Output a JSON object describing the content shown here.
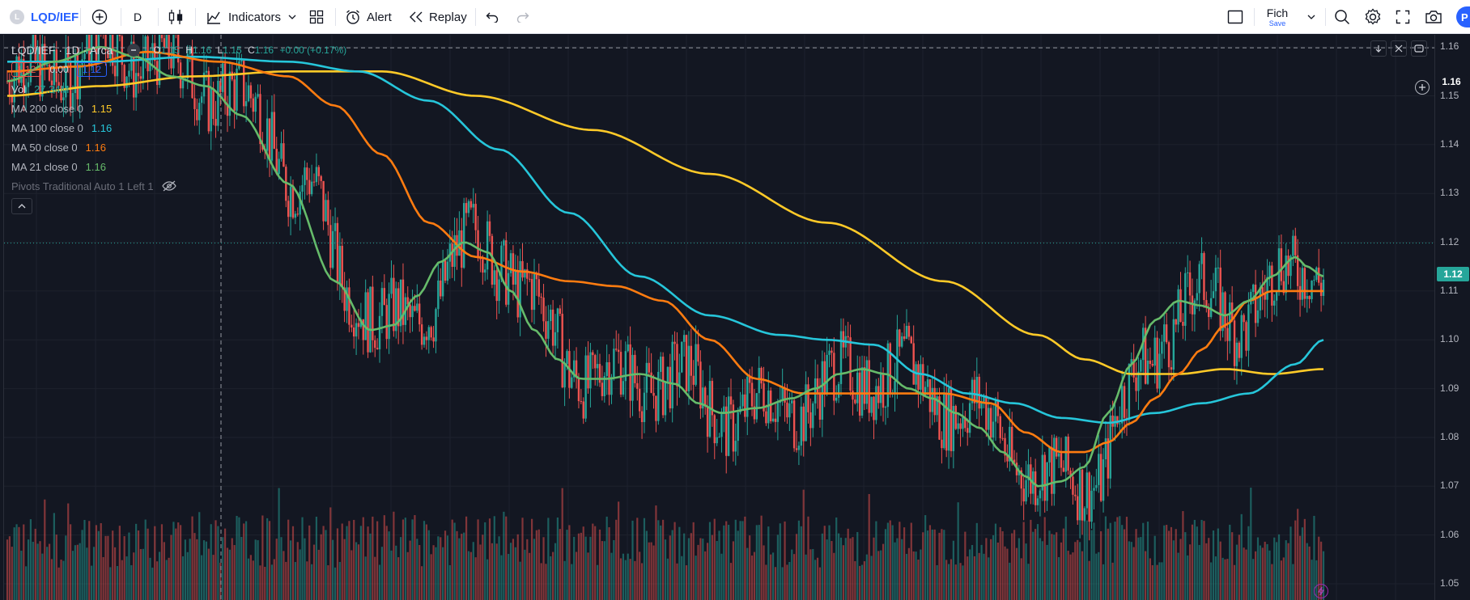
{
  "toolbar": {
    "symbol": "LQD/IEF",
    "interval": "D",
    "indicators_label": "Indicators",
    "alert_label": "Alert",
    "replay_label": "Replay",
    "layout_name": "Fich",
    "layout_save": "Save",
    "profile_initial": "P"
  },
  "legend": {
    "title": "LQD/IEF · 1D · Arca",
    "o_label": "O",
    "o_val": "1.15",
    "h_label": "H",
    "h_val": "1.16",
    "l_label": "L",
    "l_val": "1.15",
    "c_label": "C",
    "c_val": "1.16",
    "change": "+0.00 (+0.17%)",
    "sell_price": "1.12",
    "spread": "0.00",
    "buy_price": "1.12",
    "vol_label": "Vol",
    "vol_value": "27.34M",
    "indicators": [
      {
        "name": "MA 200 close 0",
        "value": "1.15",
        "color": "#ffca28"
      },
      {
        "name": "MA 100 close 0",
        "value": "1.16",
        "color": "#26c6da"
      },
      {
        "name": "MA 50 close 0",
        "value": "1.16",
        "color": "#ff7c10"
      },
      {
        "name": "MA 21 close 0",
        "value": "1.16",
        "color": "#66bb6a"
      }
    ],
    "pivots": "Pivots Traditional Auto 1 Left 1"
  },
  "price_axis": {
    "ticks": [
      "1.16",
      "1.15",
      "1.14",
      "1.13",
      "1.12",
      "1.11",
      "1.10",
      "1.09",
      "1.08",
      "1.07",
      "1.06",
      "1.05"
    ],
    "crosshair_price": "1.16",
    "last_price": "1.12"
  },
  "chart_data": {
    "type": "candlestick",
    "symbol": "LQD/IEF",
    "interval": "1D",
    "ylim": [
      1.05,
      1.165
    ],
    "ma_colors": {
      "ma21": "#66bb6a",
      "ma50": "#ff7c10",
      "ma100": "#26c6da",
      "ma200": "#ffca28"
    },
    "up_color": "#26a69a",
    "down_color": "#ef5350",
    "ma21_keypoints": [
      [
        0,
        1.153
      ],
      [
        20,
        1.157
      ],
      [
        40,
        1.16
      ],
      [
        55,
        1.158
      ],
      [
        70,
        1.154
      ],
      [
        85,
        1.152
      ],
      [
        100,
        1.146
      ],
      [
        120,
        1.132
      ],
      [
        140,
        1.112
      ],
      [
        155,
        1.102
      ],
      [
        165,
        1.103
      ],
      [
        175,
        1.109
      ],
      [
        185,
        1.116
      ],
      [
        195,
        1.12
      ],
      [
        205,
        1.118
      ],
      [
        215,
        1.11
      ],
      [
        225,
        1.102
      ],
      [
        235,
        1.096
      ],
      [
        245,
        1.092
      ],
      [
        255,
        1.092
      ],
      [
        270,
        1.093
      ],
      [
        285,
        1.091
      ],
      [
        295,
        1.087
      ],
      [
        305,
        1.085
      ],
      [
        320,
        1.086
      ],
      [
        335,
        1.088
      ],
      [
        345,
        1.09
      ],
      [
        355,
        1.093
      ],
      [
        365,
        1.094
      ],
      [
        375,
        1.093
      ],
      [
        385,
        1.09
      ],
      [
        395,
        1.088
      ],
      [
        405,
        1.085
      ],
      [
        415,
        1.082
      ],
      [
        425,
        1.077
      ],
      [
        435,
        1.072
      ],
      [
        440,
        1.07
      ],
      [
        450,
        1.071
      ],
      [
        460,
        1.074
      ],
      [
        470,
        1.085
      ],
      [
        480,
        1.095
      ],
      [
        490,
        1.104
      ],
      [
        500,
        1.108
      ],
      [
        510,
        1.107
      ],
      [
        520,
        1.105
      ],
      [
        530,
        1.108
      ],
      [
        540,
        1.113
      ],
      [
        550,
        1.117
      ],
      [
        555,
        1.115
      ],
      [
        562,
        1.113
      ]
    ],
    "ma50_keypoints": [
      [
        0,
        1.155
      ],
      [
        30,
        1.156
      ],
      [
        60,
        1.159
      ],
      [
        90,
        1.157
      ],
      [
        120,
        1.154
      ],
      [
        140,
        1.148
      ],
      [
        160,
        1.138
      ],
      [
        180,
        1.124
      ],
      [
        200,
        1.117
      ],
      [
        220,
        1.114
      ],
      [
        240,
        1.112
      ],
      [
        260,
        1.111
      ],
      [
        280,
        1.108
      ],
      [
        300,
        1.1
      ],
      [
        320,
        1.092
      ],
      [
        340,
        1.089
      ],
      [
        360,
        1.089
      ],
      [
        380,
        1.089
      ],
      [
        400,
        1.089
      ],
      [
        420,
        1.087
      ],
      [
        435,
        1.081
      ],
      [
        450,
        1.077
      ],
      [
        460,
        1.077
      ],
      [
        470,
        1.079
      ],
      [
        480,
        1.083
      ],
      [
        490,
        1.088
      ],
      [
        500,
        1.093
      ],
      [
        510,
        1.098
      ],
      [
        520,
        1.103
      ],
      [
        530,
        1.108
      ],
      [
        540,
        1.11
      ],
      [
        550,
        1.11
      ],
      [
        562,
        1.11
      ]
    ],
    "ma100_keypoints": [
      [
        0,
        1.157
      ],
      [
        40,
        1.157
      ],
      [
        80,
        1.158
      ],
      [
        120,
        1.157
      ],
      [
        150,
        1.155
      ],
      [
        180,
        1.149
      ],
      [
        210,
        1.139
      ],
      [
        240,
        1.126
      ],
      [
        270,
        1.113
      ],
      [
        300,
        1.105
      ],
      [
        330,
        1.101
      ],
      [
        350,
        1.1
      ],
      [
        370,
        1.099
      ],
      [
        390,
        1.093
      ],
      [
        410,
        1.089
      ],
      [
        430,
        1.087
      ],
      [
        450,
        1.084
      ],
      [
        470,
        1.083
      ],
      [
        490,
        1.085
      ],
      [
        510,
        1.087
      ],
      [
        530,
        1.089
      ],
      [
        550,
        1.095
      ],
      [
        562,
        1.1
      ]
    ],
    "ma200_keypoints": [
      [
        0,
        1.15
      ],
      [
        40,
        1.152
      ],
      [
        80,
        1.154
      ],
      [
        120,
        1.155
      ],
      [
        160,
        1.155
      ],
      [
        200,
        1.15
      ],
      [
        250,
        1.143
      ],
      [
        300,
        1.134
      ],
      [
        350,
        1.124
      ],
      [
        400,
        1.112
      ],
      [
        440,
        1.101
      ],
      [
        460,
        1.096
      ],
      [
        480,
        1.093
      ],
      [
        500,
        1.093
      ],
      [
        520,
        1.094
      ],
      [
        540,
        1.093
      ],
      [
        562,
        1.094
      ]
    ]
  }
}
